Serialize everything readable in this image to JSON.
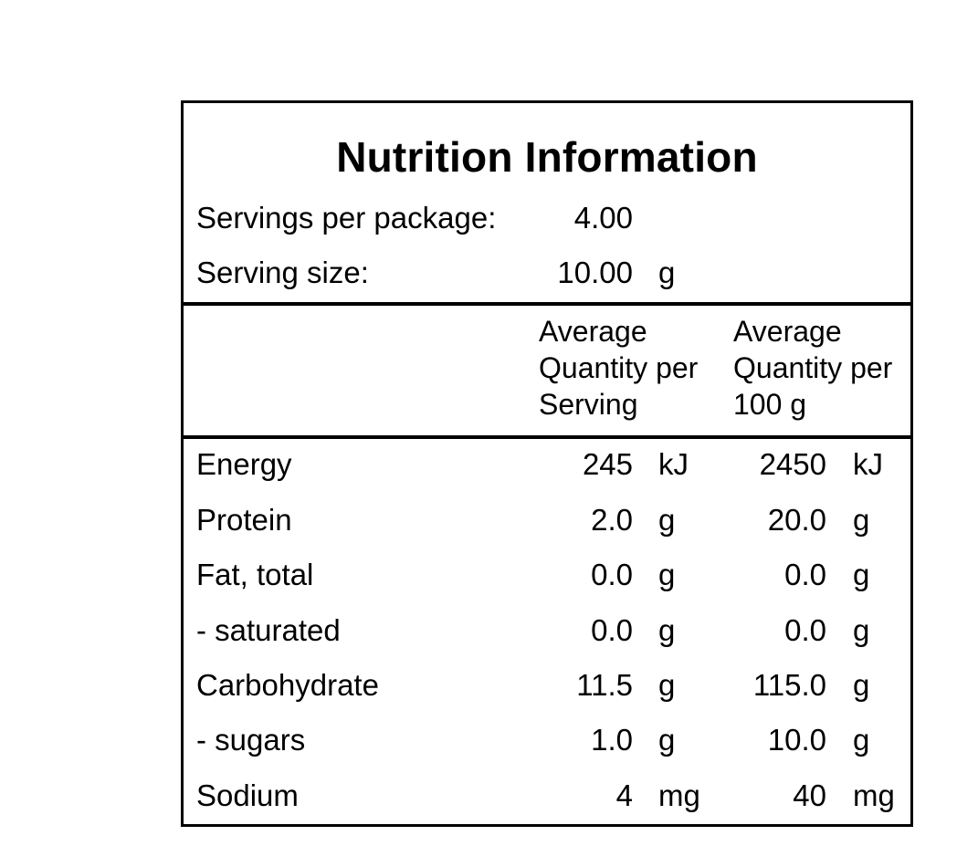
{
  "title": "Nutrition Information",
  "servings_per_package": {
    "label": "Servings per package:",
    "value": "4.00",
    "unit": ""
  },
  "serving_size": {
    "label": "Serving size:",
    "value": "10.00",
    "unit": "g"
  },
  "columns": {
    "per_serving": "Average\nQuantity per\nServing",
    "per_100g": "Average\nQuantity per\n100 g"
  },
  "rows": [
    {
      "name": "Energy",
      "serving_value": "245",
      "serving_unit": "kJ",
      "per100_value": "2450",
      "per100_unit": "kJ"
    },
    {
      "name": "Protein",
      "serving_value": "2.0",
      "serving_unit": "g",
      "per100_value": "20.0",
      "per100_unit": "g"
    },
    {
      "name": "Fat, total",
      "serving_value": "0.0",
      "serving_unit": "g",
      "per100_value": "0.0",
      "per100_unit": "g"
    },
    {
      "name": "- saturated",
      "serving_value": "0.0",
      "serving_unit": "g",
      "per100_value": "0.0",
      "per100_unit": "g"
    },
    {
      "name": "Carbohydrate",
      "serving_value": "11.5",
      "serving_unit": "g",
      "per100_value": "115.0",
      "per100_unit": "g"
    },
    {
      "name": "- sugars",
      "serving_value": "1.0",
      "serving_unit": "g",
      "per100_value": "10.0",
      "per100_unit": "g"
    },
    {
      "name": "Sodium",
      "serving_value": "4",
      "serving_unit": "mg",
      "per100_value": "40",
      "per100_unit": "mg"
    }
  ]
}
